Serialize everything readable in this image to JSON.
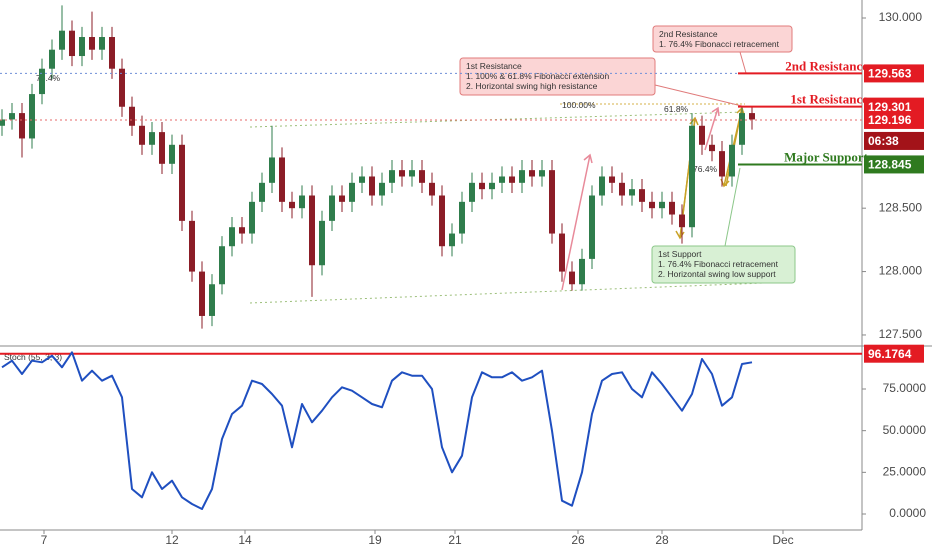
{
  "chart_data": [
    {
      "type": "candlestick",
      "xlim": [
        -0.2,
        86
      ],
      "xticks": [
        {
          "value": 4.2,
          "label": "7"
        },
        {
          "value": 17,
          "label": "12"
        },
        {
          "value": 24.3,
          "label": "14"
        },
        {
          "value": 37.3,
          "label": "19"
        },
        {
          "value": 45.3,
          "label": "21"
        },
        {
          "value": 57.6,
          "label": "26"
        },
        {
          "value": 66,
          "label": "28"
        },
        {
          "value": 78.1,
          "label": "Dec"
        }
      ],
      "ylim": [
        127.413,
        130.142
      ],
      "yticks": [
        {
          "value": 127.5,
          "label": "127.500"
        },
        {
          "value": 128,
          "label": "128.000"
        },
        {
          "value": 128.5,
          "label": "128.500"
        },
        {
          "value": 130,
          "label": "130.000"
        }
      ],
      "open": [
        129.15,
        129.2,
        129.25,
        129.05,
        129.4,
        129.6,
        129.75,
        129.9,
        129.7,
        129.85,
        129.75,
        129.85,
        129.6,
        129.3,
        129.15,
        129.0,
        129.1,
        128.85,
        129.0,
        128.4,
        128.0,
        127.65,
        127.9,
        128.2,
        128.35,
        128.3,
        128.55,
        128.7,
        128.9,
        128.55,
        128.5,
        128.6,
        128.05,
        128.4,
        128.6,
        128.55,
        128.7,
        128.75,
        128.6,
        128.7,
        128.8,
        128.75,
        128.8,
        128.7,
        128.6,
        128.2,
        128.3,
        128.55,
        128.7,
        128.65,
        128.7,
        128.75,
        128.7,
        128.8,
        128.75,
        128.8,
        128.3,
        128.0,
        127.9,
        128.1,
        128.6,
        128.75,
        128.7,
        128.6,
        128.65,
        128.55,
        128.5,
        128.55,
        128.45,
        128.35,
        129.15,
        129.0,
        128.95,
        128.75,
        129.0,
        129.25
      ],
      "high": [
        129.28,
        129.33,
        129.33,
        129.48,
        129.68,
        129.83,
        130.1,
        129.98,
        129.93,
        130.05,
        129.93,
        129.93,
        129.68,
        129.38,
        129.23,
        129.18,
        129.18,
        129.08,
        129.08,
        128.48,
        128.08,
        127.98,
        128.28,
        128.43,
        128.43,
        128.63,
        128.78,
        129.15,
        128.98,
        128.63,
        128.68,
        128.68,
        128.48,
        128.68,
        128.68,
        128.78,
        128.83,
        128.83,
        128.78,
        128.88,
        128.88,
        128.88,
        128.88,
        128.78,
        128.68,
        128.38,
        128.63,
        128.78,
        128.78,
        128.78,
        128.83,
        128.83,
        128.88,
        128.88,
        128.88,
        128.88,
        128.38,
        128.08,
        128.18,
        128.68,
        128.83,
        128.83,
        128.78,
        128.73,
        128.73,
        128.63,
        128.63,
        128.63,
        128.53,
        129.25,
        129.23,
        129.08,
        129.03,
        129.08,
        129.3,
        129.3
      ],
      "low": [
        129.07,
        129.12,
        128.9,
        128.97,
        129.32,
        129.52,
        129.67,
        129.62,
        129.62,
        129.67,
        129.67,
        129.52,
        129.22,
        129.07,
        128.92,
        128.92,
        128.77,
        128.77,
        128.32,
        127.92,
        127.55,
        127.57,
        127.82,
        128.12,
        128.22,
        128.22,
        128.47,
        128.62,
        128.47,
        128.42,
        128.42,
        127.8,
        127.97,
        128.32,
        128.47,
        128.47,
        128.62,
        128.52,
        128.52,
        128.62,
        128.67,
        128.67,
        128.62,
        128.52,
        128.12,
        128.12,
        128.22,
        128.47,
        128.57,
        128.57,
        128.62,
        128.62,
        128.62,
        128.67,
        128.67,
        128.22,
        127.92,
        127.85,
        127.85,
        128.02,
        128.52,
        128.62,
        128.52,
        128.52,
        128.47,
        128.42,
        128.42,
        128.37,
        128.22,
        128.27,
        128.92,
        128.87,
        128.67,
        128.67,
        128.92,
        129.12
      ],
      "close": [
        129.2,
        129.25,
        129.05,
        129.4,
        129.6,
        129.75,
        129.9,
        129.7,
        129.85,
        129.75,
        129.85,
        129.6,
        129.3,
        129.15,
        129.0,
        129.1,
        128.85,
        129.0,
        128.4,
        128.0,
        127.65,
        127.9,
        128.2,
        128.35,
        128.3,
        128.55,
        128.7,
        128.9,
        128.55,
        128.5,
        128.6,
        128.05,
        128.4,
        128.6,
        128.55,
        128.7,
        128.75,
        128.6,
        128.7,
        128.8,
        128.75,
        128.8,
        128.7,
        128.6,
        128.2,
        128.3,
        128.55,
        128.7,
        128.65,
        128.7,
        128.75,
        128.7,
        128.8,
        128.75,
        128.8,
        128.3,
        128.0,
        127.9,
        128.1,
        128.6,
        128.75,
        128.7,
        128.6,
        128.65,
        128.55,
        128.5,
        128.55,
        128.45,
        128.35,
        129.15,
        129.0,
        128.95,
        128.75,
        129.0,
        129.25,
        129.2
      ],
      "up_color": "#2f7d4c",
      "down_color": "#8b1d27",
      "levels": [
        {
          "value": 129.563,
          "label": "129.563",
          "name": "2nd Resistance",
          "color": "#e31b23",
          "guide": "#6f8fd8"
        },
        {
          "value": 129.301,
          "label": "129.301",
          "name": "1st Resistance",
          "color": "#e31b23"
        },
        {
          "value": 129.196,
          "label": "129.196",
          "color": "#e31b23",
          "guide": "#e56a6a"
        },
        {
          "value": 128.845,
          "label": "128.845",
          "name": "Major Support",
          "color": "#2f7a1f"
        }
      ],
      "countdown": "06:38",
      "callouts": [
        {
          "lines": [
            "2nd Resistance",
            "1. 76.4% Fibonacci retracement"
          ]
        },
        {
          "lines": [
            "1st Resistance",
            "1. 100% & 61.8% Fibonacci extension",
            "2. Horizontal swing high resistance"
          ]
        },
        {
          "lines": [
            "1st Support",
            "1. 76.4% Fibonacci retracement",
            "2. Horizontal swing low support"
          ]
        }
      ],
      "fib_labels": [
        "100.00%",
        "61.8%",
        "76.4%",
        "76.4%"
      ]
    },
    {
      "type": "line",
      "name": "Stoch (55, 3, 3)",
      "color": "#1f4fc0",
      "ylim": [
        -9.6,
        98.4
      ],
      "yticks": [
        {
          "value": 0,
          "label": "0.0000"
        },
        {
          "value": 25,
          "label": "25.0000"
        },
        {
          "value": 50,
          "label": "50.0000"
        },
        {
          "value": 75,
          "label": "75.0000"
        }
      ],
      "values": [
        88,
        92,
        84,
        92,
        91,
        95,
        88,
        97,
        80,
        86,
        80,
        83,
        70,
        15,
        10,
        25,
        15,
        20,
        10,
        6,
        3,
        15,
        45,
        60,
        65,
        80,
        78,
        72,
        65,
        40,
        66,
        55,
        62,
        70,
        76,
        74,
        70,
        66,
        64,
        80,
        85,
        83,
        83,
        75,
        40,
        25,
        35,
        70,
        85,
        82,
        82,
        85,
        80,
        82,
        86,
        50,
        8,
        5,
        25,
        60,
        80,
        84,
        85,
        75,
        70,
        85,
        78,
        70,
        62,
        72,
        93,
        84,
        65,
        70,
        90,
        91
      ],
      "level": {
        "value": 96.1764,
        "label": "96.1764",
        "color": "#e31b23"
      }
    }
  ]
}
